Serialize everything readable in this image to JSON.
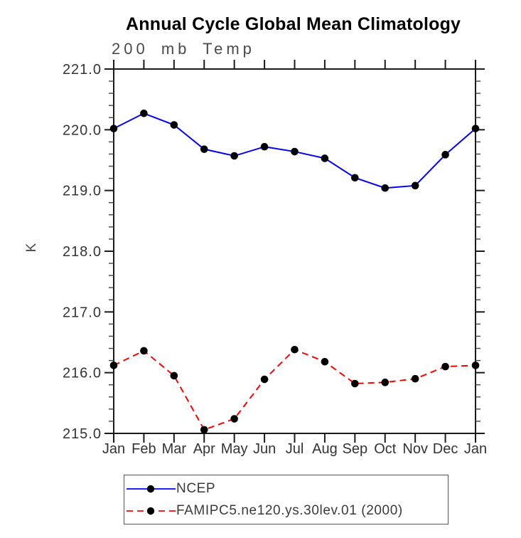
{
  "header": {
    "title": "Annual Cycle Global Mean Climatology",
    "subtitle": "200 mb Temp"
  },
  "chart_data": {
    "type": "line",
    "title": "Annual Cycle Global Mean Climatology",
    "subtitle": "200 mb Temp",
    "xlabel": "",
    "ylabel": "K",
    "x_tick_labels": [
      "Jan",
      "Feb",
      "Mar",
      "Apr",
      "May",
      "Jun",
      "Jul",
      "Aug",
      "Sep",
      "Oct",
      "Nov",
      "Dec",
      "Jan"
    ],
    "y_tick_labels": [
      "221.0",
      "220.0",
      "219.0",
      "218.0",
      "217.0",
      "216.0",
      "215.0"
    ],
    "ylim": [
      215.0,
      221.0
    ],
    "y_major_interval": 1.0,
    "y_minor_interval": 0.2,
    "grid": false,
    "legend_position": "bottom",
    "axis_color": "#1a1a1a",
    "label_color": "#333333",
    "series": [
      {
        "name": "NCEP",
        "color": "#0000ff",
        "line_style": "solid",
        "marker": "filled-circle",
        "marker_color": "#000000",
        "values": [
          220.02,
          220.27,
          220.08,
          219.68,
          219.57,
          219.72,
          219.64,
          219.53,
          219.21,
          219.04,
          219.08,
          219.59,
          220.02
        ]
      },
      {
        "name": "FAMIPC5.ne120.ys.30lev.01 (2000)",
        "color": "#ff0000",
        "line_style": "dashed",
        "marker": "filled-circle",
        "marker_color": "#000000",
        "values": [
          216.12,
          216.36,
          215.95,
          215.06,
          215.24,
          215.89,
          216.38,
          216.18,
          215.82,
          215.84,
          215.9,
          216.1,
          216.12
        ]
      }
    ]
  }
}
